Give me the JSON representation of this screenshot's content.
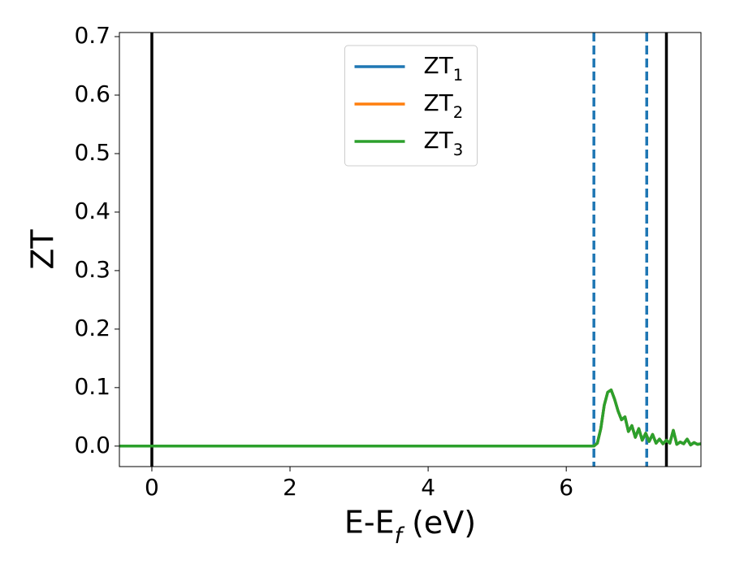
{
  "chart_data": {
    "type": "line",
    "xlabel": "E-E_f (eV)",
    "ylabel": "ZT",
    "xlim": [
      -0.47,
      7.95
    ],
    "ylim": [
      -0.035,
      0.707
    ],
    "xticks": [
      0,
      2,
      4,
      6
    ],
    "yticks": [
      {
        "value": 0,
        "label": "0.0"
      },
      0.1,
      0.2,
      0.3,
      0.4,
      0.5,
      0.6,
      0.7
    ],
    "legend": "upper center",
    "x": [
      -0.47,
      6.4,
      6.45,
      6.5,
      6.55,
      6.6,
      6.65,
      6.7,
      6.75,
      6.8,
      6.85,
      6.9,
      6.95,
      7.0,
      7.05,
      7.1,
      7.15,
      7.2,
      7.25,
      7.3,
      7.35,
      7.4,
      7.45,
      7.5,
      7.55,
      7.6,
      7.65,
      7.7,
      7.75,
      7.8,
      7.85,
      7.9,
      7.95
    ],
    "series": [
      {
        "name": "ZT_1",
        "color": "#1f77b4",
        "values": [
          0,
          0,
          0.005,
          0.03,
          0.07,
          0.092,
          0.096,
          0.08,
          0.06,
          0.045,
          0.05,
          0.025,
          0.035,
          0.015,
          0.03,
          0.01,
          0.022,
          0.008,
          0.02,
          0.005,
          0.012,
          0.004,
          0.01,
          0.005,
          0.027,
          0.003,
          0.007,
          0.004,
          0.012,
          0.002,
          0.006,
          0.003,
          0.004
        ]
      },
      {
        "name": "ZT_2",
        "color": "#ff7f0e",
        "values": [
          0,
          0,
          0.005,
          0.03,
          0.07,
          0.092,
          0.096,
          0.08,
          0.06,
          0.045,
          0.05,
          0.025,
          0.035,
          0.015,
          0.03,
          0.01,
          0.022,
          0.008,
          0.02,
          0.005,
          0.012,
          0.004,
          0.01,
          0.005,
          0.027,
          0.003,
          0.007,
          0.004,
          0.012,
          0.002,
          0.006,
          0.003,
          0.004
        ]
      },
      {
        "name": "ZT_3",
        "color": "#2ca02c",
        "values": [
          0,
          0,
          0.005,
          0.03,
          0.07,
          0.092,
          0.096,
          0.08,
          0.06,
          0.045,
          0.05,
          0.025,
          0.035,
          0.015,
          0.03,
          0.01,
          0.022,
          0.008,
          0.02,
          0.005,
          0.012,
          0.004,
          0.01,
          0.005,
          0.027,
          0.003,
          0.007,
          0.004,
          0.012,
          0.002,
          0.006,
          0.003,
          0.004
        ]
      }
    ],
    "vlines": [
      {
        "x": 0,
        "color": "#000000",
        "style": "solid"
      },
      {
        "x": 7.45,
        "color": "#000000",
        "style": "solid"
      },
      {
        "x": 6.4,
        "color": "#1f77b4",
        "style": "dashed"
      },
      {
        "x": 7.165,
        "color": "#1f77b4",
        "style": "dashed"
      }
    ]
  }
}
